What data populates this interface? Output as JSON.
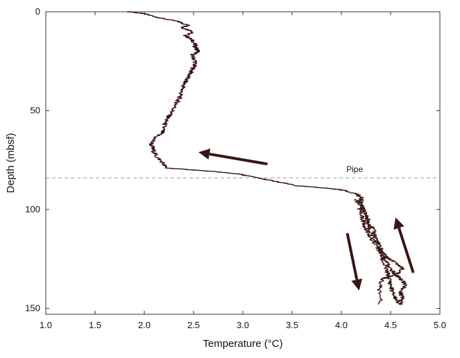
{
  "chart_data": {
    "type": "line",
    "title": "",
    "xlabel": "Temperature (°C)",
    "ylabel": "Depth (mbsf)",
    "xlim": [
      1.0,
      5.0
    ],
    "ylim": [
      0,
      153
    ],
    "y_inverted": true,
    "x_ticks": [
      "1.0",
      "1.5",
      "2.0",
      "2.5",
      "3.0",
      "3.5",
      "4.0",
      "4.5",
      "5.0"
    ],
    "y_ticks": [
      "0",
      "50",
      "100",
      "150"
    ],
    "grid": false,
    "line_color": "#3a1414",
    "series": [
      {
        "name": "",
        "points": [
          [
            1.85,
            0
          ],
          [
            2.0,
            1
          ],
          [
            2.15,
            3
          ],
          [
            2.35,
            5
          ],
          [
            2.45,
            7
          ],
          [
            2.38,
            8
          ],
          [
            2.5,
            10
          ],
          [
            2.42,
            12
          ],
          [
            2.5,
            15
          ],
          [
            2.52,
            18
          ],
          [
            2.55,
            20
          ],
          [
            2.48,
            22
          ],
          [
            2.52,
            25
          ],
          [
            2.5,
            28
          ],
          [
            2.47,
            31
          ],
          [
            2.43,
            34
          ],
          [
            2.4,
            37
          ],
          [
            2.38,
            40
          ],
          [
            2.36,
            43
          ],
          [
            2.33,
            46
          ],
          [
            2.3,
            49
          ],
          [
            2.26,
            52
          ],
          [
            2.22,
            55
          ],
          [
            2.2,
            58
          ],
          [
            2.18,
            61
          ],
          [
            2.1,
            64
          ],
          [
            2.07,
            67
          ],
          [
            2.09,
            70
          ],
          [
            2.12,
            73
          ],
          [
            2.18,
            76
          ],
          [
            2.22,
            79
          ],
          [
            2.5,
            80
          ],
          [
            2.75,
            81
          ],
          [
            2.95,
            82
          ],
          [
            3.15,
            84
          ],
          [
            3.35,
            86
          ],
          [
            3.55,
            88
          ],
          [
            3.8,
            89
          ],
          [
            4.0,
            90
          ],
          [
            4.15,
            92
          ],
          [
            4.2,
            94
          ],
          [
            4.2,
            97
          ],
          [
            4.22,
            100
          ],
          [
            4.25,
            103
          ],
          [
            4.28,
            106
          ],
          [
            4.32,
            110
          ],
          [
            4.35,
            114
          ],
          [
            4.38,
            118
          ],
          [
            4.4,
            122
          ],
          [
            4.42,
            126
          ],
          [
            4.45,
            130
          ],
          [
            4.48,
            134
          ],
          [
            4.5,
            138
          ],
          [
            4.52,
            142
          ],
          [
            4.55,
            145
          ],
          [
            4.6,
            148
          ]
        ]
      },
      {
        "name": "",
        "points": [
          [
            4.6,
            148
          ],
          [
            4.62,
            145
          ],
          [
            4.6,
            142
          ],
          [
            4.65,
            138
          ],
          [
            4.6,
            135
          ],
          [
            4.55,
            133
          ],
          [
            4.5,
            130
          ],
          [
            4.45,
            126
          ],
          [
            4.4,
            122
          ],
          [
            4.35,
            118
          ],
          [
            4.3,
            114
          ],
          [
            4.25,
            110
          ],
          [
            4.22,
            106
          ],
          [
            4.2,
            102
          ],
          [
            4.18,
            98
          ],
          [
            4.15,
            95
          ]
        ]
      },
      {
        "name": "",
        "points": [
          [
            4.4,
            148
          ],
          [
            4.38,
            140
          ],
          [
            4.42,
            135
          ],
          [
            4.55,
            133
          ],
          [
            4.62,
            130
          ],
          [
            4.55,
            127
          ],
          [
            4.45,
            124
          ],
          [
            4.4,
            120
          ],
          [
            4.35,
            116
          ],
          [
            4.3,
            112
          ],
          [
            4.28,
            108
          ],
          [
            4.25,
            104
          ],
          [
            4.22,
            100
          ],
          [
            4.2,
            96
          ]
        ]
      }
    ],
    "annotations": [
      {
        "text": "Pipe",
        "x": 4.05,
        "y": 81
      }
    ],
    "reference_lines": [
      {
        "orientation": "horizontal",
        "y": 84,
        "style": "dashed",
        "label": "Pipe"
      }
    ],
    "arrows": [
      {
        "from": [
          3.25,
          77
        ],
        "to": [
          2.55,
          71
        ]
      },
      {
        "from": [
          4.06,
          112
        ],
        "to": [
          4.18,
          141
        ]
      },
      {
        "from": [
          4.73,
          132
        ],
        "to": [
          4.55,
          104
        ]
      }
    ]
  }
}
